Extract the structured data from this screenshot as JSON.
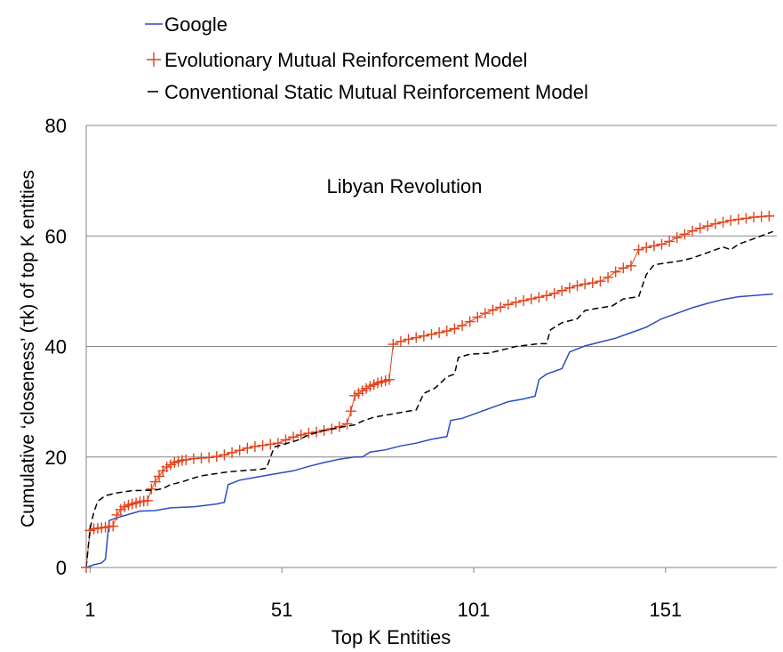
{
  "chart_data": {
    "type": "line",
    "title": "Libyan Revolution",
    "xlabel": "Top K Entities",
    "ylabel": "Cumulative ‘closeness’ (τk) of top K entities",
    "xlim": [
      0,
      180
    ],
    "ylim": [
      0,
      80
    ],
    "xticks": [
      1,
      51,
      101,
      151
    ],
    "yticks": [
      0,
      20,
      40,
      60,
      80
    ],
    "grid": "horizontal",
    "legend_position": "top-left",
    "series": [
      {
        "name": "Google",
        "style": "solid",
        "color": "#2a4cc0",
        "points": [
          [
            0,
            0
          ],
          [
            2,
            0.5
          ],
          [
            4,
            0.8
          ],
          [
            5,
            1.5
          ],
          [
            6,
            8.5
          ],
          [
            8,
            9
          ],
          [
            12,
            9.8
          ],
          [
            14,
            10.2
          ],
          [
            18,
            10.3
          ],
          [
            22,
            10.8
          ],
          [
            28,
            11
          ],
          [
            34,
            11.5
          ],
          [
            36,
            11.8
          ],
          [
            37,
            15
          ],
          [
            40,
            15.8
          ],
          [
            44,
            16.3
          ],
          [
            48,
            16.8
          ],
          [
            54,
            17.5
          ],
          [
            58,
            18.3
          ],
          [
            62,
            19
          ],
          [
            66,
            19.6
          ],
          [
            70,
            20
          ],
          [
            72,
            20
          ],
          [
            74,
            20.9
          ],
          [
            78,
            21.3
          ],
          [
            82,
            22
          ],
          [
            86,
            22.5
          ],
          [
            90,
            23.2
          ],
          [
            94,
            23.7
          ],
          [
            95,
            26.6
          ],
          [
            98,
            27
          ],
          [
            102,
            28
          ],
          [
            106,
            29
          ],
          [
            110,
            30
          ],
          [
            114,
            30.5
          ],
          [
            117,
            31
          ],
          [
            118,
            34
          ],
          [
            120,
            35
          ],
          [
            124,
            36
          ],
          [
            126,
            39
          ],
          [
            130,
            40.1
          ],
          [
            134,
            40.8
          ],
          [
            138,
            41.5
          ],
          [
            142,
            42.5
          ],
          [
            146,
            43.5
          ],
          [
            150,
            45
          ],
          [
            154,
            46
          ],
          [
            158,
            47
          ],
          [
            162,
            47.8
          ],
          [
            166,
            48.5
          ],
          [
            170,
            49
          ],
          [
            179,
            49.5
          ]
        ]
      },
      {
        "name": "Evolutionary Mutual Reinforcement Model",
        "style": "plus-markers",
        "color": "#e2431b",
        "points": [
          [
            0,
            0
          ],
          [
            1,
            6.7
          ],
          [
            2,
            7
          ],
          [
            3,
            7.1
          ],
          [
            4,
            7.2
          ],
          [
            5,
            7.3
          ],
          [
            6,
            7.4
          ],
          [
            7,
            7.5
          ],
          [
            8,
            9.5
          ],
          [
            9,
            10.5
          ],
          [
            10,
            11
          ],
          [
            11,
            11.3
          ],
          [
            12,
            11.5
          ],
          [
            13,
            11.7
          ],
          [
            14,
            11.9
          ],
          [
            15,
            12
          ],
          [
            16,
            12.1
          ],
          [
            17,
            14.2
          ],
          [
            18,
            15.5
          ],
          [
            19,
            16.5
          ],
          [
            20,
            17.5
          ],
          [
            21,
            18.2
          ],
          [
            22,
            18.6
          ],
          [
            23,
            19
          ],
          [
            24,
            19.2
          ],
          [
            25,
            19.4
          ],
          [
            26,
            19.5
          ],
          [
            28,
            19.7
          ],
          [
            30,
            19.8
          ],
          [
            32,
            19.9
          ],
          [
            34,
            20.1
          ],
          [
            36,
            20.4
          ],
          [
            38,
            20.8
          ],
          [
            40,
            21.2
          ],
          [
            42,
            21.6
          ],
          [
            44,
            21.9
          ],
          [
            46,
            22.1
          ],
          [
            48,
            22.3
          ],
          [
            50,
            22.5
          ],
          [
            52,
            23.1
          ],
          [
            54,
            23.6
          ],
          [
            56,
            24
          ],
          [
            58,
            24.3
          ],
          [
            60,
            24.5
          ],
          [
            62,
            24.8
          ],
          [
            64,
            25.1
          ],
          [
            66,
            25.5
          ],
          [
            68,
            26
          ],
          [
            69,
            28.3
          ],
          [
            70,
            31.1
          ],
          [
            71,
            31.5
          ],
          [
            72,
            32
          ],
          [
            73,
            32.4
          ],
          [
            74,
            32.8
          ],
          [
            75,
            33.1
          ],
          [
            76,
            33.4
          ],
          [
            77,
            33.6
          ],
          [
            78,
            33.8
          ],
          [
            79,
            34
          ],
          [
            80,
            40.4
          ],
          [
            82,
            40.9
          ],
          [
            84,
            41.3
          ],
          [
            86,
            41.6
          ],
          [
            88,
            41.9
          ],
          [
            90,
            42.2
          ],
          [
            92,
            42.5
          ],
          [
            94,
            42.8
          ],
          [
            96,
            43.2
          ],
          [
            98,
            43.8
          ],
          [
            100,
            44.5
          ],
          [
            102,
            45.3
          ],
          [
            104,
            46
          ],
          [
            106,
            46.6
          ],
          [
            108,
            47.1
          ],
          [
            110,
            47.6
          ],
          [
            112,
            48
          ],
          [
            114,
            48.3
          ],
          [
            116,
            48.6
          ],
          [
            118,
            48.9
          ],
          [
            120,
            49.2
          ],
          [
            122,
            49.6
          ],
          [
            124,
            50.1
          ],
          [
            126,
            50.6
          ],
          [
            128,
            51
          ],
          [
            130,
            51.3
          ],
          [
            132,
            51.5
          ],
          [
            134,
            51.8
          ],
          [
            136,
            52.5
          ],
          [
            138,
            53.5
          ],
          [
            140,
            54.2
          ],
          [
            142,
            54.6
          ],
          [
            144,
            57.5
          ],
          [
            146,
            57.9
          ],
          [
            148,
            58.2
          ],
          [
            150,
            58.5
          ],
          [
            152,
            59
          ],
          [
            154,
            59.7
          ],
          [
            156,
            60.3
          ],
          [
            158,
            60.9
          ],
          [
            160,
            61.4
          ],
          [
            162,
            61.8
          ],
          [
            164,
            62.2
          ],
          [
            166,
            62.5
          ],
          [
            168,
            62.8
          ],
          [
            170,
            63
          ],
          [
            172,
            63.2
          ],
          [
            174,
            63.4
          ],
          [
            176,
            63.5
          ],
          [
            178,
            63.6
          ]
        ]
      },
      {
        "name": "Conventional Static Mutual Reinforcement Model",
        "style": "dashed",
        "color": "#000000",
        "points": [
          [
            0,
            0
          ],
          [
            1,
            7
          ],
          [
            2,
            10
          ],
          [
            3,
            12
          ],
          [
            5,
            13
          ],
          [
            8,
            13.5
          ],
          [
            12,
            13.9
          ],
          [
            18,
            14
          ],
          [
            20,
            14.3
          ],
          [
            22,
            15
          ],
          [
            25,
            15.5
          ],
          [
            28,
            16.2
          ],
          [
            30,
            16.6
          ],
          [
            33,
            16.9
          ],
          [
            37,
            17.3
          ],
          [
            42,
            17.6
          ],
          [
            45,
            17.7
          ],
          [
            47,
            18
          ],
          [
            49,
            21.8
          ],
          [
            51,
            22.2
          ],
          [
            55,
            23
          ],
          [
            58,
            24
          ],
          [
            62,
            24.8
          ],
          [
            65,
            25.2
          ],
          [
            68,
            25.6
          ],
          [
            70,
            25.8
          ],
          [
            72,
            26.5
          ],
          [
            75,
            27.2
          ],
          [
            80,
            27.8
          ],
          [
            84,
            28.3
          ],
          [
            86,
            28.5
          ],
          [
            88,
            31.5
          ],
          [
            91,
            32.5
          ],
          [
            94,
            34.5
          ],
          [
            96,
            35
          ],
          [
            97,
            38
          ],
          [
            100,
            38.6
          ],
          [
            105,
            38.8
          ],
          [
            108,
            39.3
          ],
          [
            112,
            40
          ],
          [
            118,
            40.5
          ],
          [
            120,
            40.5
          ],
          [
            121,
            43
          ],
          [
            124,
            44.3
          ],
          [
            128,
            45
          ],
          [
            130,
            46.5
          ],
          [
            134,
            47
          ],
          [
            137,
            47.3
          ],
          [
            140,
            48.6
          ],
          [
            144,
            49
          ],
          [
            146,
            53
          ],
          [
            148,
            54.8
          ],
          [
            152,
            55.2
          ],
          [
            155,
            55.5
          ],
          [
            158,
            56
          ],
          [
            162,
            57
          ],
          [
            166,
            58
          ],
          [
            168,
            57.5
          ],
          [
            170,
            58.5
          ],
          [
            174,
            59.5
          ],
          [
            179,
            60.8
          ]
        ]
      }
    ]
  }
}
